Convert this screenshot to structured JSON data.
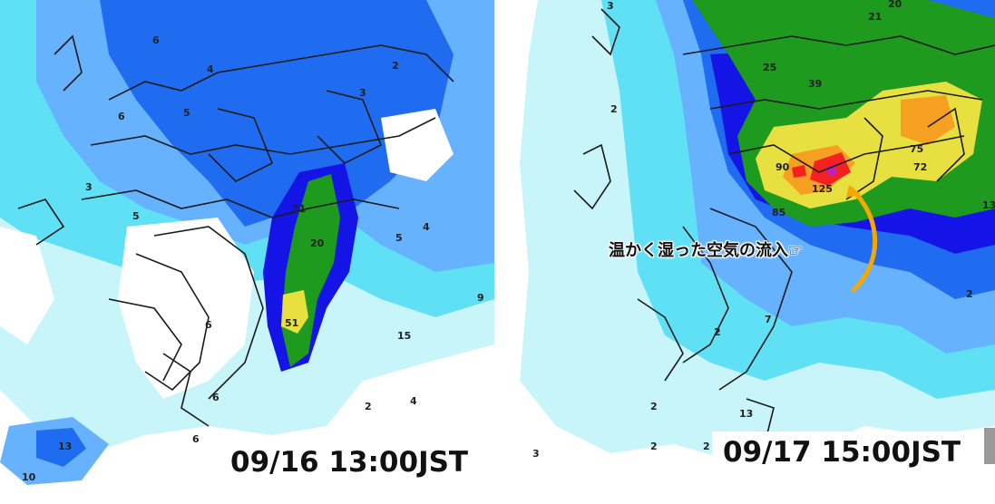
{
  "panels": [
    {
      "timestamp": "09/16 13:00JST",
      "values": [
        "6",
        "4",
        "2",
        "3",
        "6",
        "5",
        "3",
        "5",
        "21",
        "20",
        "5",
        "4",
        "9",
        "51",
        "6",
        "15",
        "6",
        "4",
        "2",
        "6",
        "13",
        "10"
      ]
    },
    {
      "timestamp": "09/17 15:00JST",
      "values": [
        "3",
        "20",
        "21",
        "25",
        "39",
        "2",
        "75",
        "72",
        "90",
        "125",
        "85",
        "13",
        "2",
        "7",
        "2",
        "2",
        "2",
        "3",
        "2",
        "13"
      ],
      "annotation": "温かく湿った空気の流入☞"
    }
  ],
  "colors": {
    "light_cyan": "#c8f5fa",
    "cyan": "#5fe0f5",
    "light_blue": "#66b2ff",
    "blue": "#1f6cf0",
    "dark_blue": "#1414e6",
    "green": "#1e9a1e",
    "yellow": "#e8e040",
    "orange": "#f5a020",
    "red": "#f52020",
    "magenta": "#c020c0",
    "arrow": "#f5a800"
  }
}
